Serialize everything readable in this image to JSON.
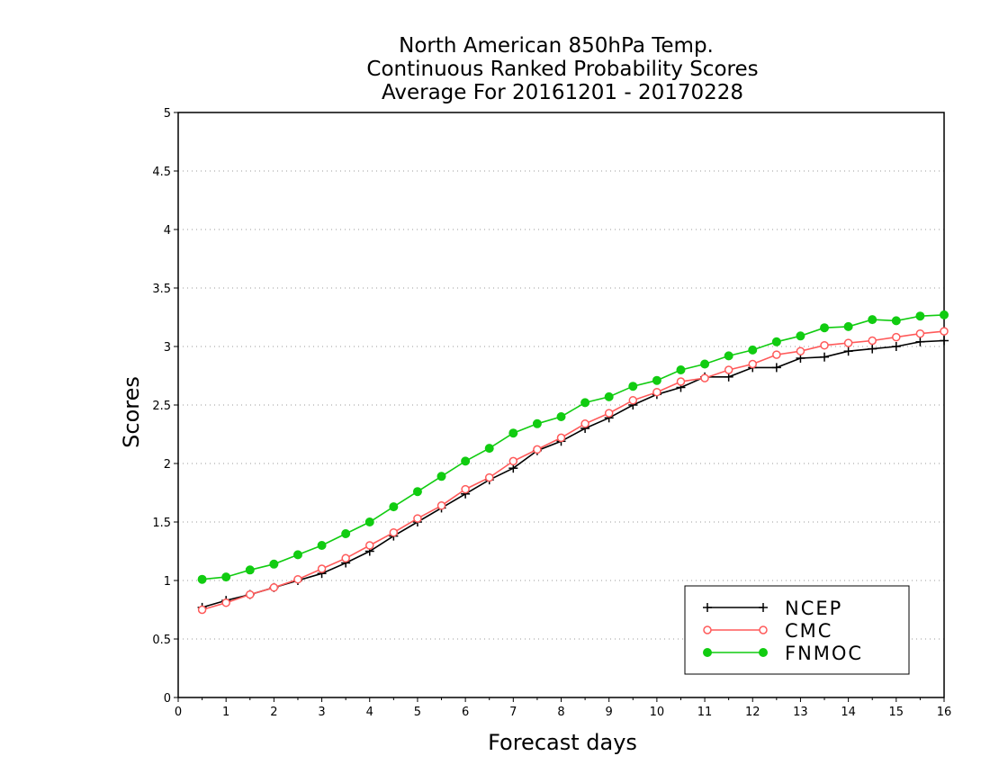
{
  "chart_data": {
    "type": "line",
    "title_lines": [
      "North American 850hPa Temp.",
      "Continuous Ranked Probability Scores",
      "Average For 20161201 - 20170228"
    ],
    "xlabel": "Forecast days",
    "ylabel": "Scores",
    "xlim": [
      0,
      16
    ],
    "ylim": [
      0,
      5
    ],
    "xticks": [
      "0",
      "1",
      "2",
      "3",
      "4",
      "5",
      "6",
      "7",
      "8",
      "9",
      "10",
      "11",
      "12",
      "13",
      "14",
      "15",
      "16"
    ],
    "yticks": [
      "0",
      "0.5",
      "1",
      "1.5",
      "2",
      "2.5",
      "3",
      "3.5",
      "4",
      "4.5",
      "5"
    ],
    "grid": "horizontal dotted",
    "legend_position": "bottom-right",
    "x": [
      0.5,
      1,
      1.5,
      2,
      2.5,
      3,
      3.5,
      4,
      4.5,
      5,
      5.5,
      6,
      6.5,
      7,
      7.5,
      8,
      8.5,
      9,
      9.5,
      10,
      10.5,
      11,
      11.5,
      12,
      12.5,
      13,
      13.5,
      14,
      14.5,
      15,
      15.5,
      16
    ],
    "series": [
      {
        "name": "NCEP",
        "color": "#000000",
        "marker": "plus",
        "values": [
          0.77,
          0.83,
          0.88,
          0.94,
          1.0,
          1.06,
          1.15,
          1.25,
          1.38,
          1.5,
          1.62,
          1.74,
          1.86,
          1.96,
          2.11,
          2.19,
          2.3,
          2.39,
          2.5,
          2.59,
          2.65,
          2.74,
          2.74,
          2.82,
          2.82,
          2.9,
          2.91,
          2.96,
          2.98,
          3.0,
          3.04,
          3.05
        ]
      },
      {
        "name": "CMC",
        "color": "#ff5a5a",
        "marker": "open-circle",
        "values": [
          0.75,
          0.81,
          0.88,
          0.94,
          1.01,
          1.1,
          1.19,
          1.3,
          1.41,
          1.53,
          1.64,
          1.78,
          1.88,
          2.02,
          2.12,
          2.22,
          2.34,
          2.43,
          2.54,
          2.61,
          2.7,
          2.73,
          2.8,
          2.85,
          2.93,
          2.96,
          3.01,
          3.03,
          3.05,
          3.08,
          3.11,
          3.13
        ]
      },
      {
        "name": "FNMOC",
        "color": "#11cc11",
        "marker": "filled-circle",
        "values": [
          1.01,
          1.03,
          1.09,
          1.14,
          1.22,
          1.3,
          1.4,
          1.5,
          1.63,
          1.76,
          1.89,
          2.02,
          2.13,
          2.26,
          2.34,
          2.4,
          2.52,
          2.57,
          2.66,
          2.71,
          2.8,
          2.85,
          2.92,
          2.97,
          3.04,
          3.09,
          3.16,
          3.17,
          3.23,
          3.22,
          3.26,
          3.27
        ]
      }
    ]
  }
}
